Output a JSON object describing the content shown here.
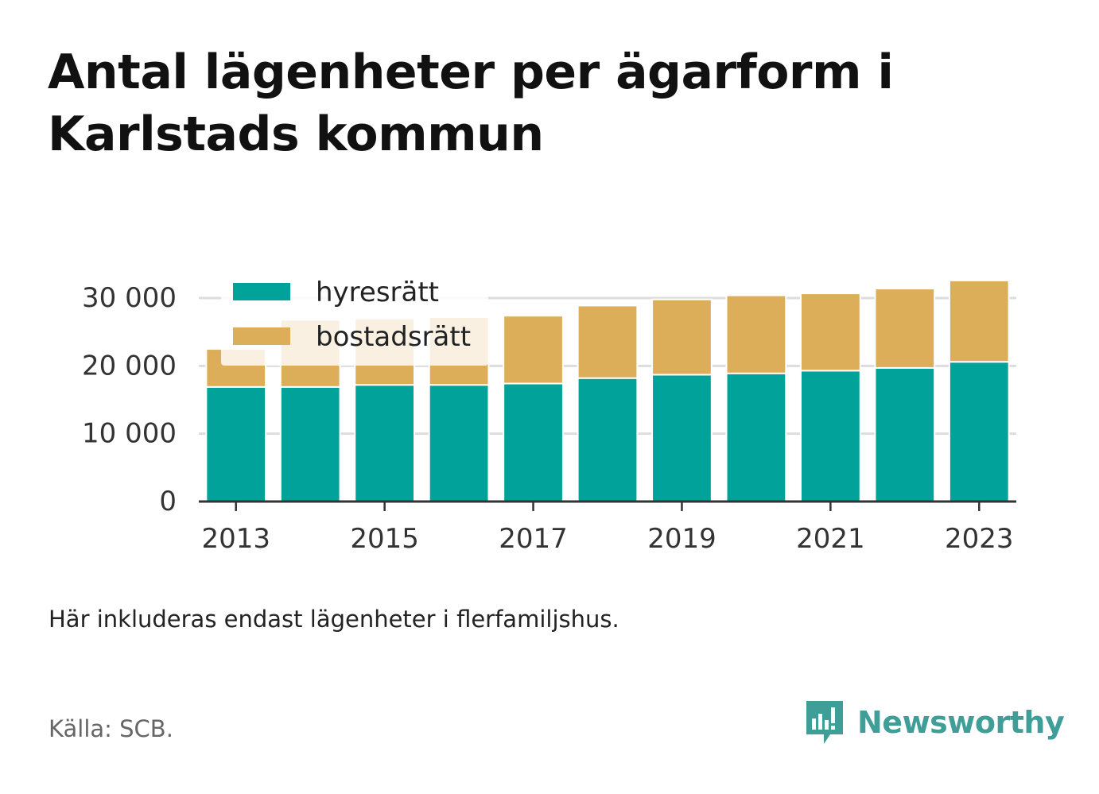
{
  "title": [
    "Antal lägenheter per ägarform i",
    "Karlstads kommun"
  ],
  "note": "Här inkluderas endast lägenheter i flerfamiljshus.",
  "source": "Källa: SCB.",
  "brand": {
    "name": "Newsworthy",
    "icon": "newsworthy-logo-icon",
    "color": "#3f9e97"
  },
  "chart_data": {
    "type": "bar",
    "stacked": true,
    "categories": [
      2013,
      2014,
      2015,
      2016,
      2017,
      2018,
      2019,
      2020,
      2021,
      2022,
      2023
    ],
    "x_tick_labels": [
      "2013",
      "2015",
      "2017",
      "2019",
      "2021",
      "2023"
    ],
    "series": [
      {
        "name": "hyresrätt",
        "color": "#00a29a",
        "values": [
          16900,
          16900,
          17200,
          17200,
          17400,
          18200,
          18700,
          18900,
          19300,
          19700,
          20600
        ]
      },
      {
        "name": "bostadsrätt",
        "color": "#dcae5a",
        "values": [
          5600,
          9900,
          9800,
          10000,
          10000,
          10700,
          11100,
          11500,
          11400,
          11700,
          12000
        ]
      }
    ],
    "ylim": [
      0,
      32700
    ],
    "yticks": [
      0,
      10000,
      20000,
      30000
    ],
    "ytick_labels": [
      "0",
      "10 000",
      "20 000",
      "30 000"
    ],
    "xlabel": "",
    "ylabel": "",
    "grid": "horizontal",
    "legend_position": "top-left"
  }
}
